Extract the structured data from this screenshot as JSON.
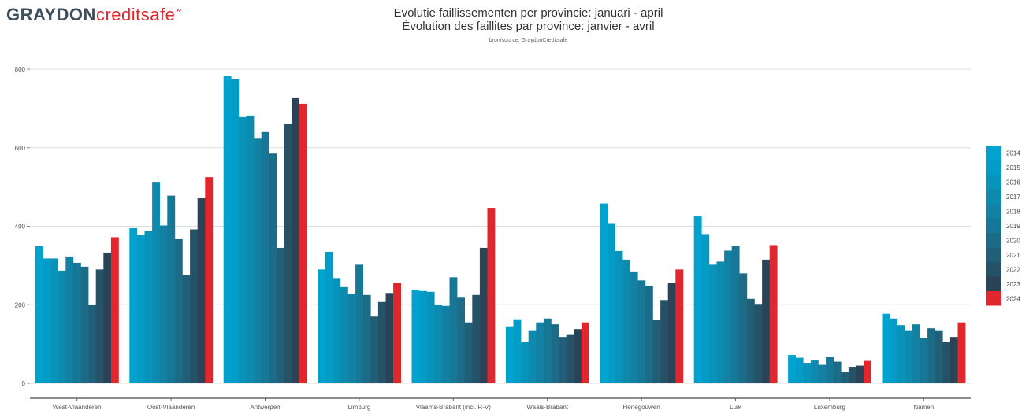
{
  "logo": {
    "part1": "GRAYDON",
    "part2": "creditsafe"
  },
  "chart_data": {
    "type": "bar",
    "title": "Evolutie faillissementen per provincie: januari - april",
    "subtitle": "Évolution des faillites par province: janvier - avril",
    "source": "bron/source: GraydonCreditsafe",
    "xlabel": "",
    "ylabel": "",
    "ylim": [
      0,
      800
    ],
    "yticks": [
      0,
      200,
      400,
      600,
      800
    ],
    "grid": true,
    "legend_position": "right",
    "categories": [
      "West-Vlaanderen",
      "Oost-Vlaanderen",
      "Antwerpen",
      "Limburg",
      "Vlaams-Brabant (incl. R-V)",
      "Waals-Brabant",
      "Henegouwen",
      "Luik",
      "Luxemburg",
      "Namen"
    ],
    "series": [
      {
        "name": "2014",
        "color": "#00a3d0",
        "values": [
          350,
          395,
          783,
          290,
          237,
          145,
          458,
          425,
          72,
          177
        ]
      },
      {
        "name": "2015",
        "color": "#039cc6",
        "values": [
          318,
          378,
          775,
          335,
          235,
          163,
          408,
          380,
          65,
          165
        ]
      },
      {
        "name": "2016",
        "color": "#0894ba",
        "values": [
          318,
          388,
          678,
          268,
          233,
          105,
          337,
          302,
          52,
          148
        ]
      },
      {
        "name": "2017",
        "color": "#0d8baf",
        "values": [
          287,
          513,
          682,
          245,
          200,
          135,
          315,
          310,
          58,
          135
        ]
      },
      {
        "name": "2018",
        "color": "#1281a3",
        "values": [
          323,
          402,
          625,
          228,
          197,
          155,
          285,
          338,
          47,
          150
        ]
      },
      {
        "name": "2019",
        "color": "#177796",
        "values": [
          307,
          478,
          640,
          302,
          270,
          165,
          262,
          350,
          68,
          115
        ]
      },
      {
        "name": "2020",
        "color": "#1c6c88",
        "values": [
          297,
          367,
          585,
          225,
          220,
          150,
          248,
          280,
          55,
          140
        ]
      },
      {
        "name": "2021",
        "color": "#215f78",
        "values": [
          200,
          275,
          345,
          170,
          155,
          118,
          162,
          215,
          28,
          135
        ]
      },
      {
        "name": "2022",
        "color": "#265268",
        "values": [
          290,
          392,
          660,
          207,
          225,
          125,
          212,
          202,
          42,
          105
        ]
      },
      {
        "name": "2023",
        "color": "#2b4356",
        "values": [
          333,
          472,
          728,
          230,
          345,
          138,
          255,
          315,
          45,
          118
        ]
      },
      {
        "name": "2024",
        "color": "#e2262d",
        "values": [
          372,
          525,
          712,
          255,
          447,
          155,
          290,
          352,
          57,
          155
        ]
      }
    ]
  }
}
